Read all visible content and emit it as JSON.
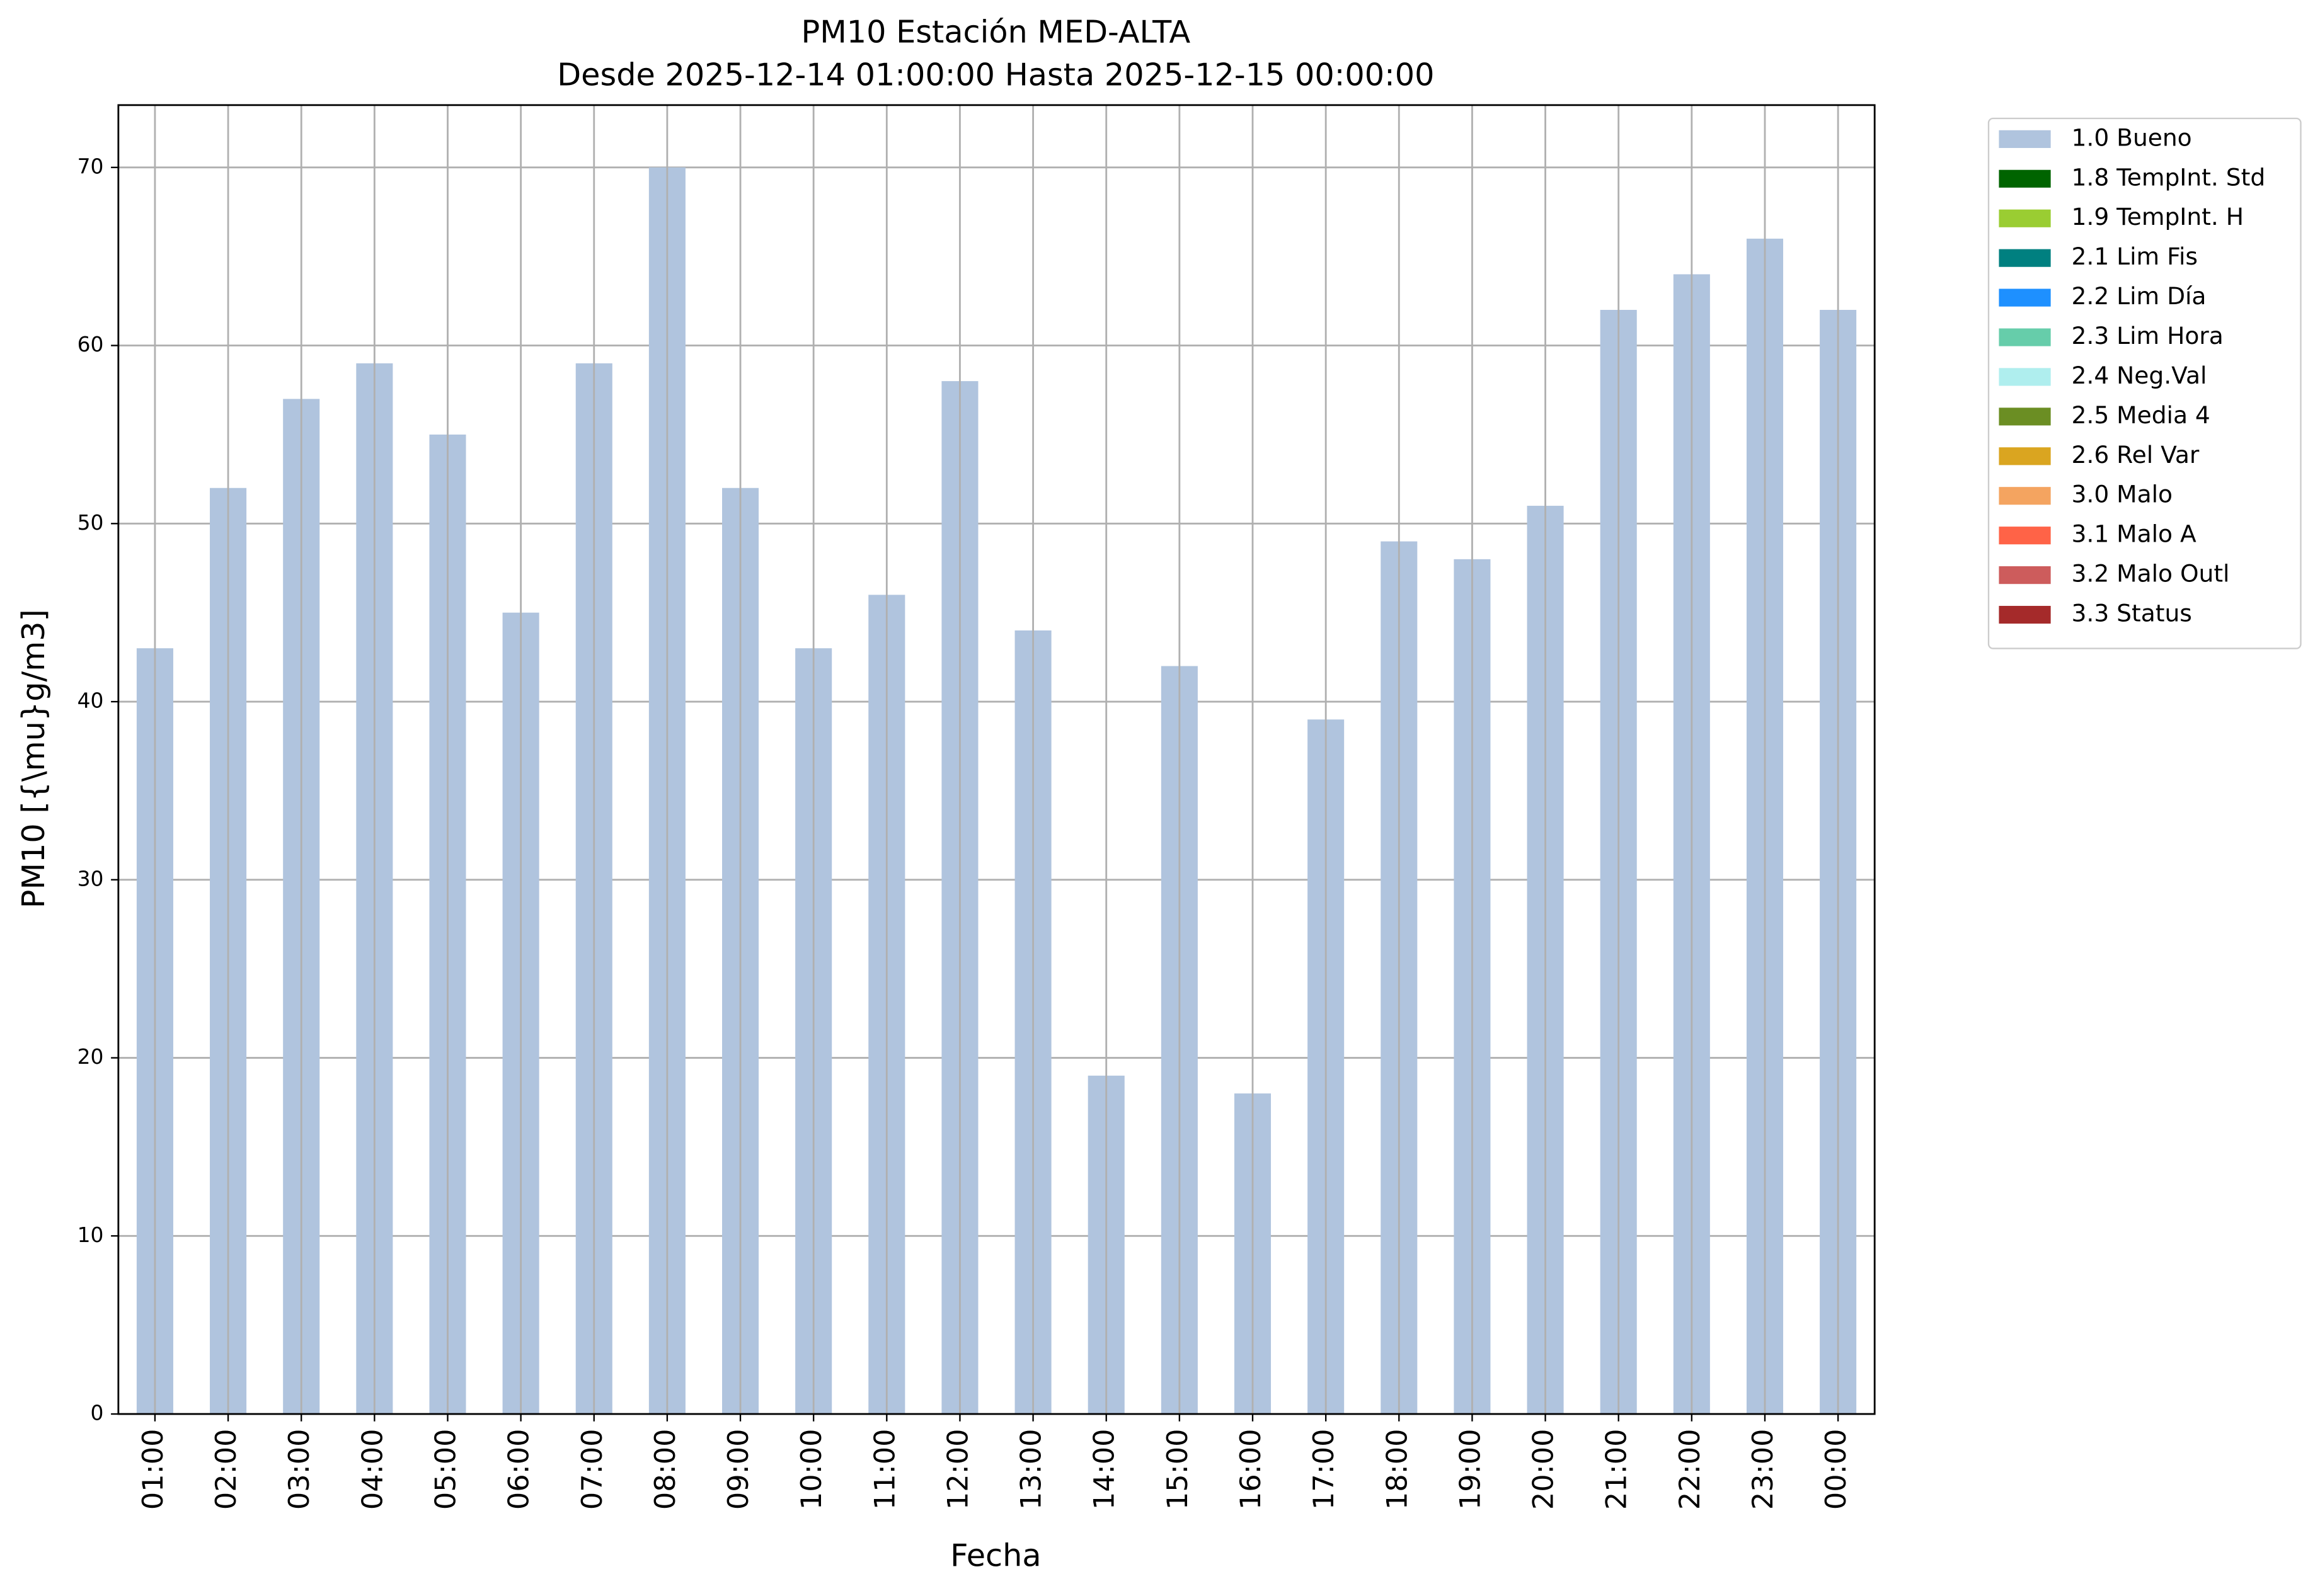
{
  "chart_data": {
    "type": "stacked-bar",
    "title": "PM10 Estación MED-ALTA",
    "subtitle": "Desde 2025-12-14 01:00:00 Hasta 2025-12-15 00:00:00",
    "x_label": "Fecha",
    "y_label": "PM10 [{\\mu}g/m3]",
    "categories": [
      "01:00",
      "02:00",
      "03:00",
      "04:00",
      "05:00",
      "06:00",
      "07:00",
      "08:00",
      "09:00",
      "10:00",
      "11:00",
      "12:00",
      "13:00",
      "14:00",
      "15:00",
      "16:00",
      "17:00",
      "18:00",
      "19:00",
      "20:00",
      "21:00",
      "22:00",
      "23:00",
      "00:00"
    ],
    "series": [
      {
        "name": "1.0 Bueno",
        "color": "#b0c4de",
        "values": [
          43,
          52,
          57,
          59,
          55,
          45,
          59,
          70,
          52,
          43,
          46,
          58,
          44,
          19,
          42,
          18,
          39,
          49,
          48,
          51,
          62,
          64,
          66,
          62
        ]
      },
      {
        "name": "1.8 TempInt. Std",
        "color": "#006400",
        "values": [
          0,
          0,
          0,
          0,
          0,
          0,
          0,
          0,
          0,
          0,
          0,
          0,
          0,
          0,
          0,
          0,
          0,
          0,
          0,
          0,
          0,
          0,
          0,
          0
        ]
      },
      {
        "name": "1.9 TempInt. H",
        "color": "#9acd32",
        "values": [
          0,
          0,
          0,
          0,
          0,
          0,
          0,
          0,
          0,
          0,
          0,
          0,
          0,
          0,
          0,
          0,
          0,
          0,
          0,
          0,
          0,
          0,
          0,
          0
        ]
      },
      {
        "name": "2.1 Lim Fis",
        "color": "#008080",
        "values": [
          0,
          0,
          0,
          0,
          0,
          0,
          0,
          0,
          0,
          0,
          0,
          0,
          0,
          0,
          0,
          0,
          0,
          0,
          0,
          0,
          0,
          0,
          0,
          0
        ]
      },
      {
        "name": "2.2 Lim Día",
        "color": "#1e90ff",
        "values": [
          0,
          0,
          0,
          0,
          0,
          0,
          0,
          0,
          0,
          0,
          0,
          0,
          0,
          0,
          0,
          0,
          0,
          0,
          0,
          0,
          0,
          0,
          0,
          0
        ]
      },
      {
        "name": "2.3 Lim Hora",
        "color": "#66cdaa",
        "values": [
          0,
          0,
          0,
          0,
          0,
          0,
          0,
          0,
          0,
          0,
          0,
          0,
          0,
          0,
          0,
          0,
          0,
          0,
          0,
          0,
          0,
          0,
          0,
          0
        ]
      },
      {
        "name": "2.4 Neg.Val",
        "color": "#afeeee",
        "values": [
          0,
          0,
          0,
          0,
          0,
          0,
          0,
          0,
          0,
          0,
          0,
          0,
          0,
          0,
          0,
          0,
          0,
          0,
          0,
          0,
          0,
          0,
          0,
          0
        ]
      },
      {
        "name": "2.5 Media 4",
        "color": "#6b8e23",
        "values": [
          0,
          0,
          0,
          0,
          0,
          0,
          0,
          0,
          0,
          0,
          0,
          0,
          0,
          0,
          0,
          0,
          0,
          0,
          0,
          0,
          0,
          0,
          0,
          0
        ]
      },
      {
        "name": "2.6 Rel Var",
        "color": "#daa520",
        "values": [
          0,
          0,
          0,
          0,
          0,
          0,
          0,
          0,
          0,
          0,
          0,
          0,
          0,
          0,
          0,
          0,
          0,
          0,
          0,
          0,
          0,
          0,
          0,
          0
        ]
      },
      {
        "name": "3.0 Malo",
        "color": "#f4a460",
        "values": [
          0,
          0,
          0,
          0,
          0,
          0,
          0,
          0,
          0,
          0,
          0,
          0,
          0,
          0,
          0,
          0,
          0,
          0,
          0,
          0,
          0,
          0,
          0,
          0
        ]
      },
      {
        "name": "3.1 Malo A",
        "color": "#ff6347",
        "values": [
          0,
          0,
          0,
          0,
          0,
          0,
          0,
          0,
          0,
          0,
          0,
          0,
          0,
          0,
          0,
          0,
          0,
          0,
          0,
          0,
          0,
          0,
          0,
          0
        ]
      },
      {
        "name": "3.2 Malo Outl",
        "color": "#cd5c5c",
        "values": [
          0,
          0,
          0,
          0,
          0,
          0,
          0,
          0,
          0,
          0,
          0,
          0,
          0,
          0,
          0,
          0,
          0,
          0,
          0,
          0,
          0,
          0,
          0,
          0
        ]
      },
      {
        "name": "3.3 Status",
        "color": "#a52a2a",
        "values": [
          0,
          0,
          0,
          0,
          0,
          0,
          0,
          0,
          0,
          0,
          0,
          0,
          0,
          0,
          0,
          0,
          0,
          0,
          0,
          0,
          0,
          0,
          0,
          0
        ]
      }
    ],
    "ylim": [
      0,
      73.5
    ],
    "yticks": [
      0,
      10,
      20,
      30,
      40,
      50,
      60,
      70
    ],
    "grid": true,
    "legend": "outside-upper-right"
  }
}
